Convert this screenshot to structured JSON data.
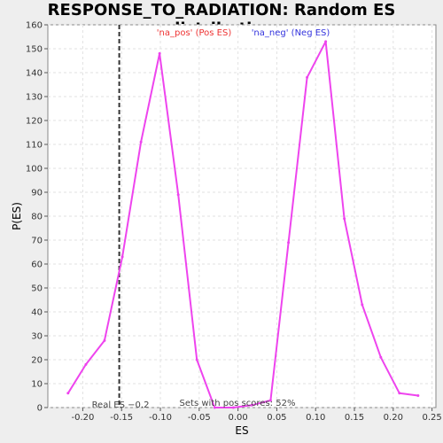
{
  "chart_data": {
    "type": "line",
    "title": "RESPONSE_TO_RADIATION: Random ES distribution",
    "xlabel": "ES",
    "ylabel": "P(ES)",
    "xlim": [
      -0.245,
      0.255
    ],
    "ylim": [
      0,
      160
    ],
    "x_ticks": [
      -0.2,
      -0.15,
      -0.1,
      -0.05,
      0.0,
      0.05,
      0.1,
      0.15,
      0.2,
      0.25
    ],
    "x_tick_labels": [
      "-0.20",
      "-0.15",
      "-0.10",
      "-0.05",
      "0.00",
      "0.05",
      "0.10",
      "0.15",
      "0.20",
      "0.25"
    ],
    "y_ticks": [
      0,
      10,
      20,
      30,
      40,
      50,
      60,
      70,
      80,
      90,
      100,
      110,
      120,
      130,
      140,
      150,
      160
    ],
    "y_tick_labels": [
      "0",
      "10",
      "20",
      "30",
      "40",
      "50",
      "60",
      "70",
      "80",
      "90",
      "100",
      "110",
      "120",
      "130",
      "140",
      "150",
      "160"
    ],
    "grid": true,
    "series": [
      {
        "color": "#ee44ee",
        "x": [
          -0.219,
          -0.196,
          -0.172,
          -0.149,
          -0.125,
          -0.101,
          -0.077,
          -0.053,
          -0.03,
          -0.006,
          0.018,
          0.042,
          0.065,
          0.089,
          0.113,
          0.137,
          0.16,
          0.184,
          0.208,
          0.232
        ],
        "y": [
          6,
          18,
          28,
          63,
          111,
          148,
          89,
          20,
          0,
          0,
          1,
          3,
          69,
          138,
          153,
          79,
          43,
          21,
          6,
          5
        ]
      }
    ],
    "legend": [
      {
        "label": "'na_pos' (Pos ES)",
        "color": "#ee3333"
      },
      {
        "label": "'na_neg' (Neg ES)",
        "color": "#3333dd"
      }
    ],
    "legend_placement": "top-center",
    "real_es": {
      "value": -0.153,
      "label": "Real ES −0.2"
    },
    "annotation": "Sets with pos scores: 52%"
  }
}
